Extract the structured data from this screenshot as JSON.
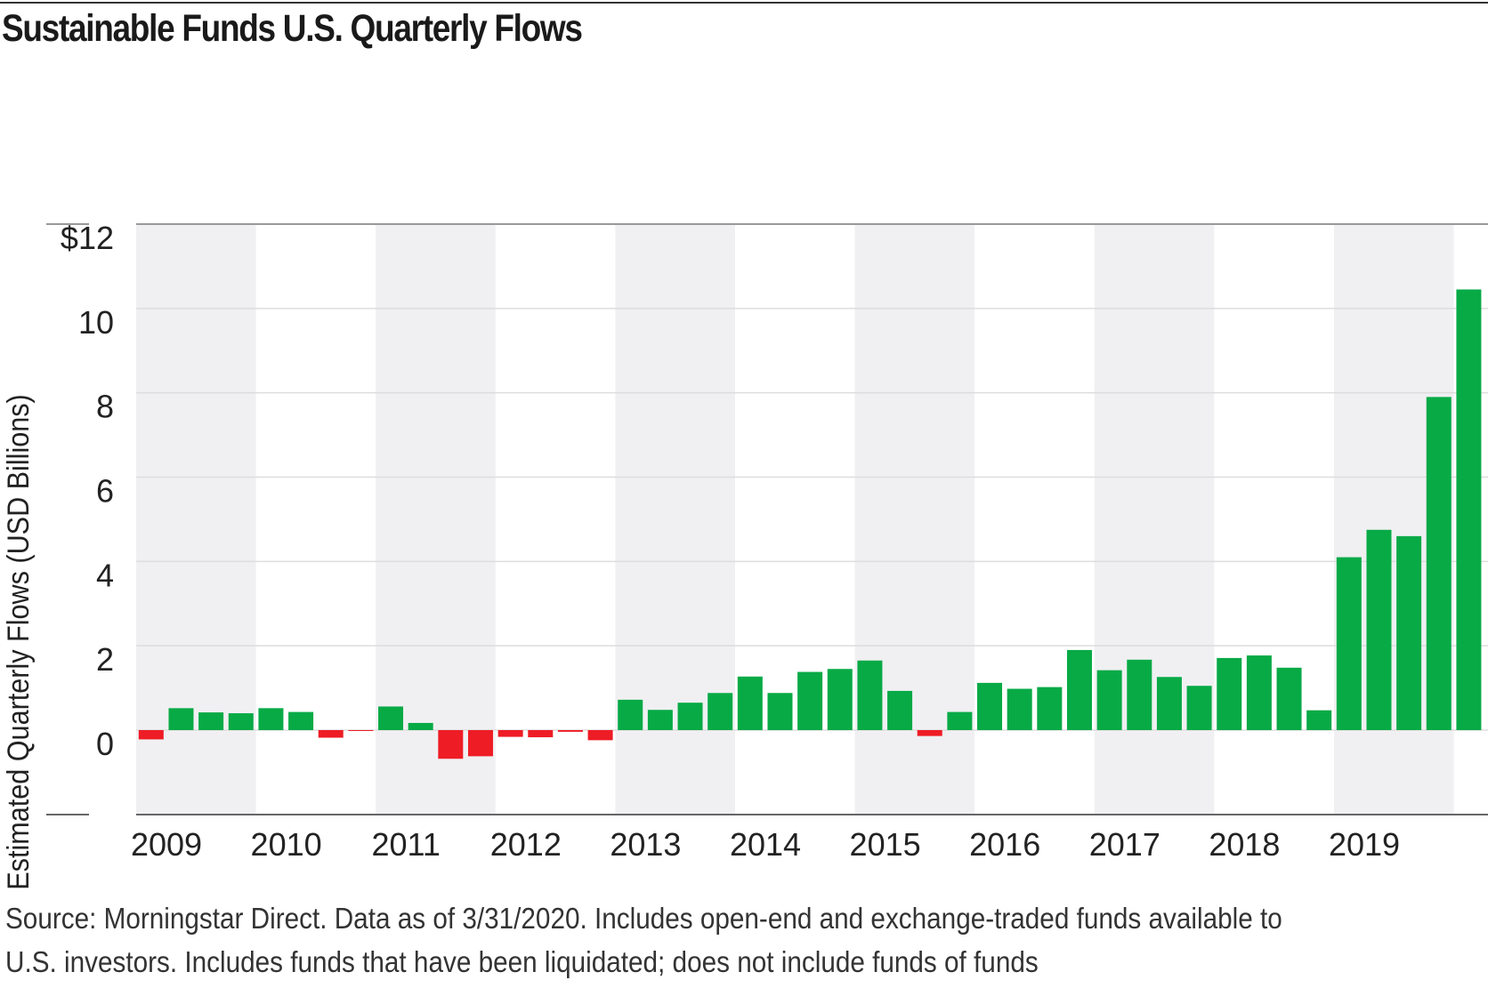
{
  "title": "Sustainable Funds U.S. Quarterly Flows",
  "source_note": "Source: Morningstar Direct. Data as of 3/31/2020. Includes open-end and exchange-traded funds available to U.S. investors. Includes funds that have been liquidated; does not include funds of funds",
  "colors": {
    "positive": "#08aa46",
    "negative": "#ee1c25",
    "band": "#f0f0f2",
    "grid": "#dddddd",
    "axis_text": "#222222"
  },
  "chart_data": {
    "type": "bar",
    "ylabel": "Estimated Quarterly Flows (USD Billions)",
    "xlabel": "",
    "ylim": [
      -2,
      12
    ],
    "yticks": [
      {
        "value": 12,
        "label": "$12"
      },
      {
        "value": 10,
        "label": "10"
      },
      {
        "value": 8,
        "label": "8"
      },
      {
        "value": 6,
        "label": "6"
      },
      {
        "value": 4,
        "label": "4"
      },
      {
        "value": 2,
        "label": "2"
      },
      {
        "value": 0,
        "label": "0"
      }
    ],
    "years": [
      "2009",
      "2010",
      "2011",
      "2012",
      "2013",
      "2014",
      "2015",
      "2016",
      "2017",
      "2018",
      "2019"
    ],
    "shaded_years": [
      "2009",
      "2011",
      "2013",
      "2015",
      "2017",
      "2019"
    ],
    "grid": true,
    "categories": [
      "2009 Q1",
      "2009 Q2",
      "2009 Q3",
      "2009 Q4",
      "2010 Q1",
      "2010 Q2",
      "2010 Q3",
      "2010 Q4",
      "2011 Q1",
      "2011 Q2",
      "2011 Q3",
      "2011 Q4",
      "2012 Q1",
      "2012 Q2",
      "2012 Q3",
      "2012 Q4",
      "2013 Q1",
      "2013 Q2",
      "2013 Q3",
      "2013 Q4",
      "2014 Q1",
      "2014 Q2",
      "2014 Q3",
      "2014 Q4",
      "2015 Q1",
      "2015 Q2",
      "2015 Q3",
      "2015 Q4",
      "2016 Q1",
      "2016 Q2",
      "2016 Q3",
      "2016 Q4",
      "2017 Q1",
      "2017 Q2",
      "2017 Q3",
      "2017 Q4",
      "2018 Q1",
      "2018 Q2",
      "2018 Q3",
      "2018 Q4",
      "2019 Q1",
      "2019 Q2",
      "2019 Q3",
      "2019 Q4",
      "2020 Q1"
    ],
    "values": [
      -0.22,
      0.52,
      0.42,
      0.4,
      0.52,
      0.43,
      -0.18,
      -0.02,
      0.56,
      0.17,
      -0.68,
      -0.62,
      -0.16,
      -0.17,
      -0.04,
      -0.24,
      0.72,
      0.48,
      0.65,
      0.88,
      1.27,
      0.88,
      1.38,
      1.45,
      1.65,
      0.93,
      -0.14,
      0.43,
      1.12,
      0.98,
      1.02,
      1.9,
      1.42,
      1.67,
      1.26,
      1.05,
      1.71,
      1.77,
      1.48,
      0.47,
      4.1,
      4.75,
      4.6,
      7.9,
      10.45
    ]
  }
}
